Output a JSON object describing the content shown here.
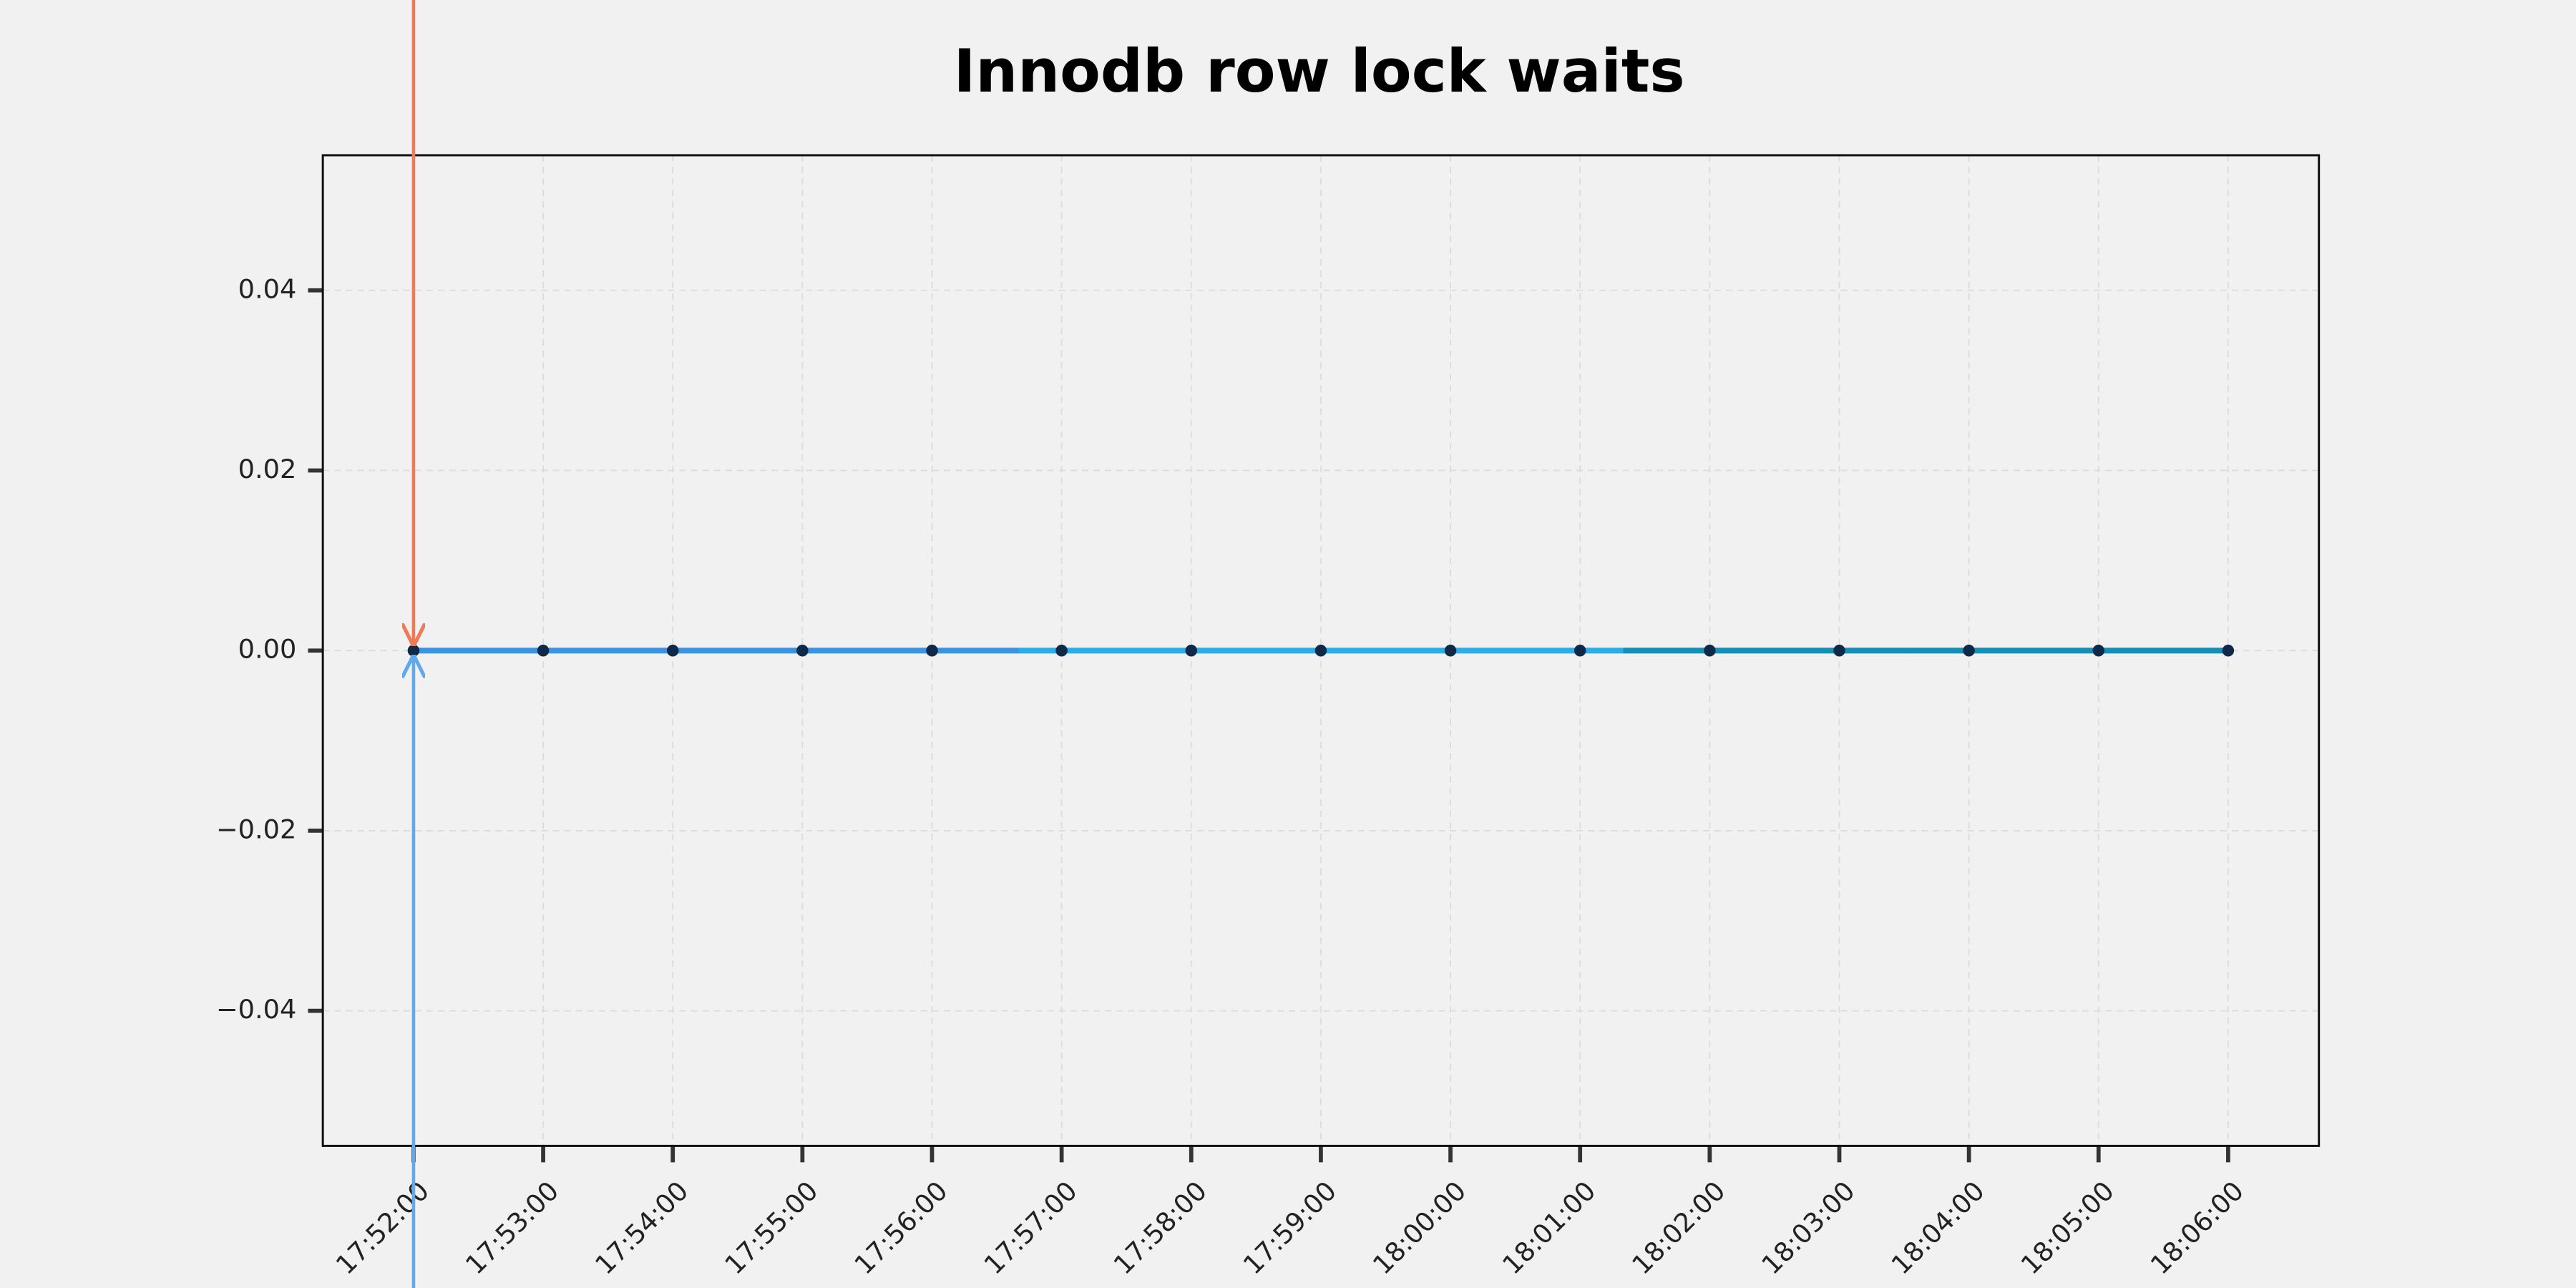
{
  "chart_data": {
    "type": "line",
    "title": "Innodb row lock waits",
    "categories": [
      "17:52:00",
      "17:53:00",
      "17:54:00",
      "17:55:00",
      "17:56:00",
      "17:57:00",
      "17:58:00",
      "17:59:00",
      "18:00:00",
      "18:01:00",
      "18:02:00",
      "18:03:00",
      "18:04:00",
      "18:05:00",
      "18:06:00"
    ],
    "values": [
      0,
      0,
      0,
      0,
      0,
      0,
      0,
      0,
      0,
      0,
      0,
      0,
      0,
      0,
      0
    ],
    "colors": [
      "#3a94e4",
      "#2aaeea",
      "#1490b8"
    ],
    "marker_color": "#0f2a48",
    "ylim": [
      -0.055,
      0.055
    ],
    "yticks": [
      {
        "value": -0.04,
        "label": "−0.04"
      },
      {
        "value": -0.02,
        "label": "−0.02"
      },
      {
        "value": 0,
        "label": "0.00"
      },
      0.02,
      0.04
    ],
    "grid": true
  }
}
